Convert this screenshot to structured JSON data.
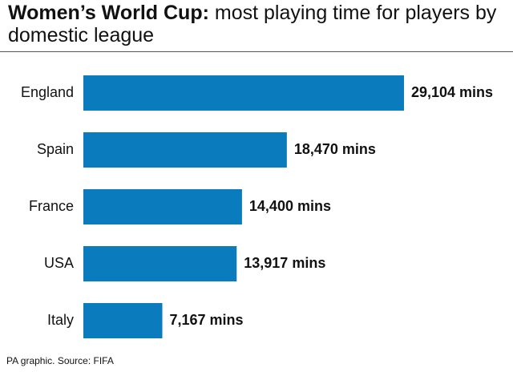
{
  "chart_data": {
    "type": "bar",
    "orientation": "horizontal",
    "title": [
      "Women’s World Cup:",
      "most playing time for players by domestic league"
    ],
    "categories": [
      "England",
      "Spain",
      "France",
      "USA",
      "Italy"
    ],
    "values": [
      29104,
      18470,
      14400,
      13917,
      7167
    ],
    "value_labels": [
      "29,104 mins",
      "18,470 mins",
      "14,400 mins",
      "13,917 mins",
      "7,167 mins"
    ],
    "color": "#0a7bbd",
    "source": "PA graphic. Source: FIFA"
  }
}
